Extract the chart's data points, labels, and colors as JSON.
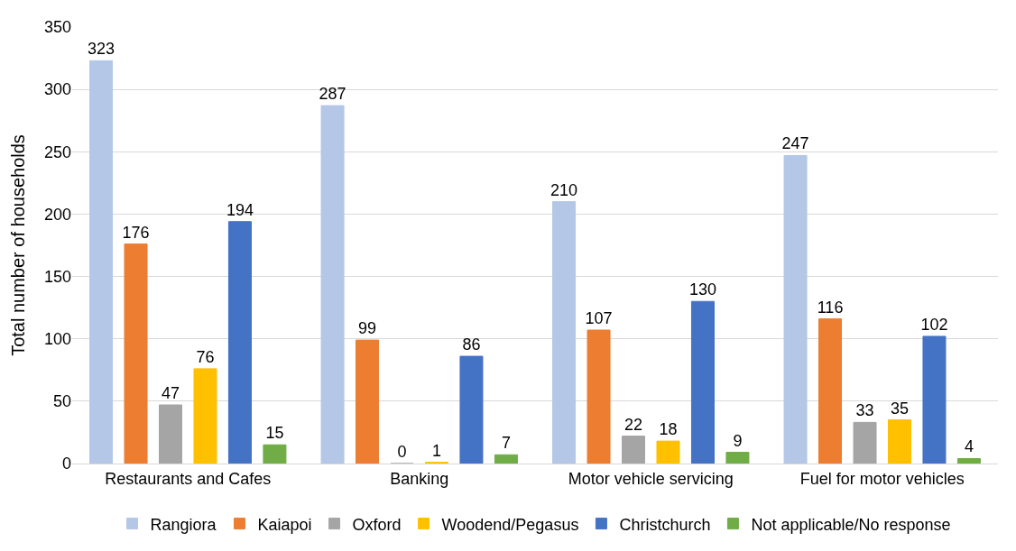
{
  "chart_data": {
    "type": "bar",
    "categories": [
      "Restaurants and Cafes",
      "Banking",
      "Motor vehicle servicing",
      "Fuel for motor vehicles"
    ],
    "ylabel": "Total number of households",
    "series": [
      {
        "name": "Rangiora",
        "color": "#b4c7e7",
        "values": [
          323,
          287,
          210,
          247
        ]
      },
      {
        "name": "Kaiapoi",
        "color": "#ed7d31",
        "values": [
          176,
          99,
          107,
          116
        ]
      },
      {
        "name": "Oxford",
        "color": "#a5a5a5",
        "values": [
          47,
          0,
          22,
          33
        ]
      },
      {
        "name": "Woodend/Pegasus",
        "color": "#ffc000",
        "values": [
          76,
          1,
          18,
          35
        ]
      },
      {
        "name": "Christchurch",
        "color": "#4472c4",
        "values": [
          194,
          86,
          130,
          102
        ]
      },
      {
        "name": "Not applicable/No response",
        "color": "#70ad47",
        "values": [
          15,
          7,
          9,
          4
        ]
      }
    ],
    "ylim": [
      0,
      350
    ],
    "yticks": [
      0,
      50,
      100,
      150,
      200,
      250,
      300,
      350
    ],
    "grid": "y",
    "legend": "bottom",
    "data_labels": true
  }
}
